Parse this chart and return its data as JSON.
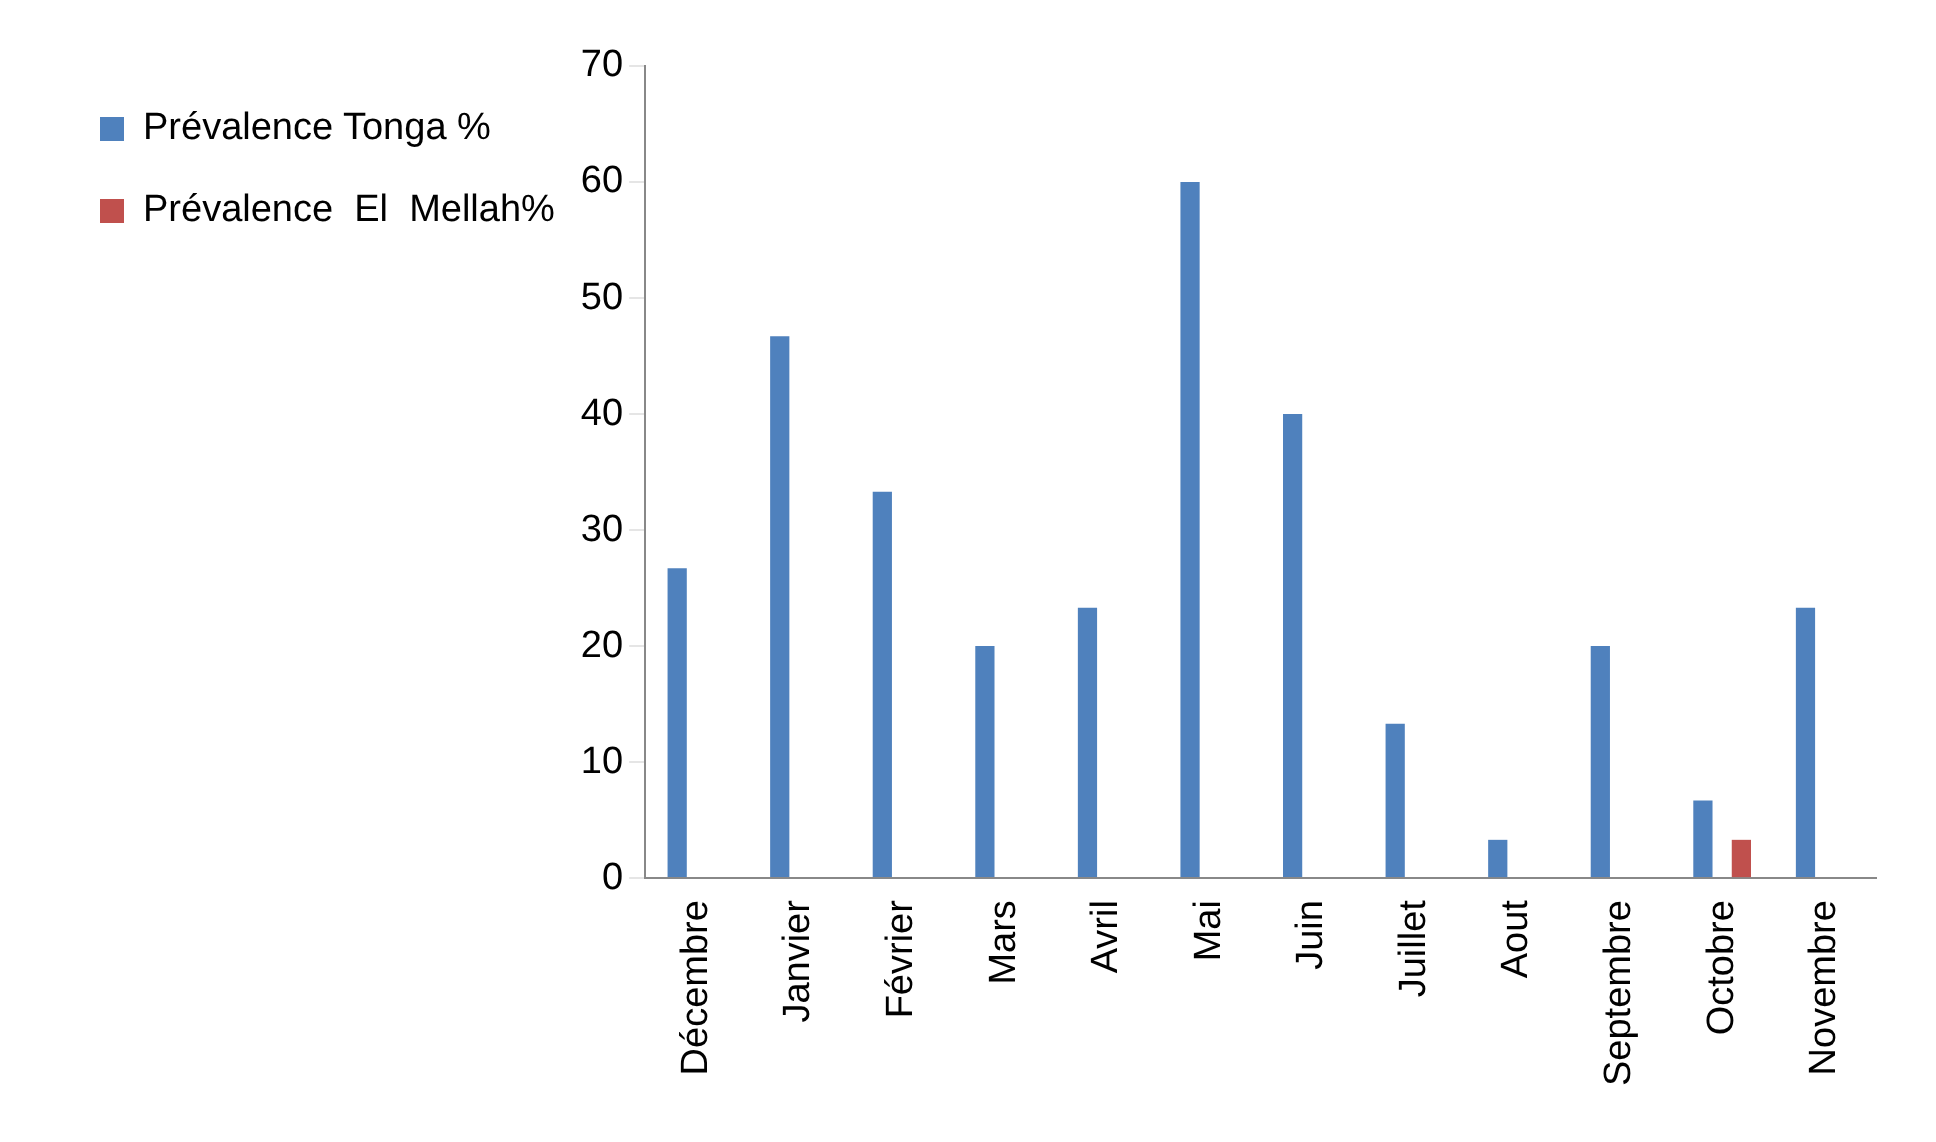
{
  "chart_data": {
    "type": "bar",
    "categories": [
      "Décembre",
      "Janvier",
      "Février",
      "Mars",
      "Avril",
      "Mai",
      "Juin",
      "Juillet",
      "Aout",
      "Septembre",
      "Octobre",
      "Novembre"
    ],
    "series": [
      {
        "name": "Prévalence Tonga %",
        "color": "#4f81bd",
        "values": [
          26.7,
          46.7,
          33.3,
          20,
          23.3,
          60,
          40,
          13.3,
          3.3,
          20,
          6.7,
          23.3
        ]
      },
      {
        "name": "Prévalence  El  Mellah%",
        "color": "#c0504d",
        "values": [
          0,
          0,
          0,
          0,
          0,
          0,
          0,
          0,
          0,
          0,
          3.3,
          0
        ]
      }
    ],
    "ylim": [
      0,
      70
    ],
    "yticks": [
      0,
      10,
      20,
      30,
      40,
      50,
      60,
      70
    ],
    "grid": false,
    "legend": "top left"
  }
}
